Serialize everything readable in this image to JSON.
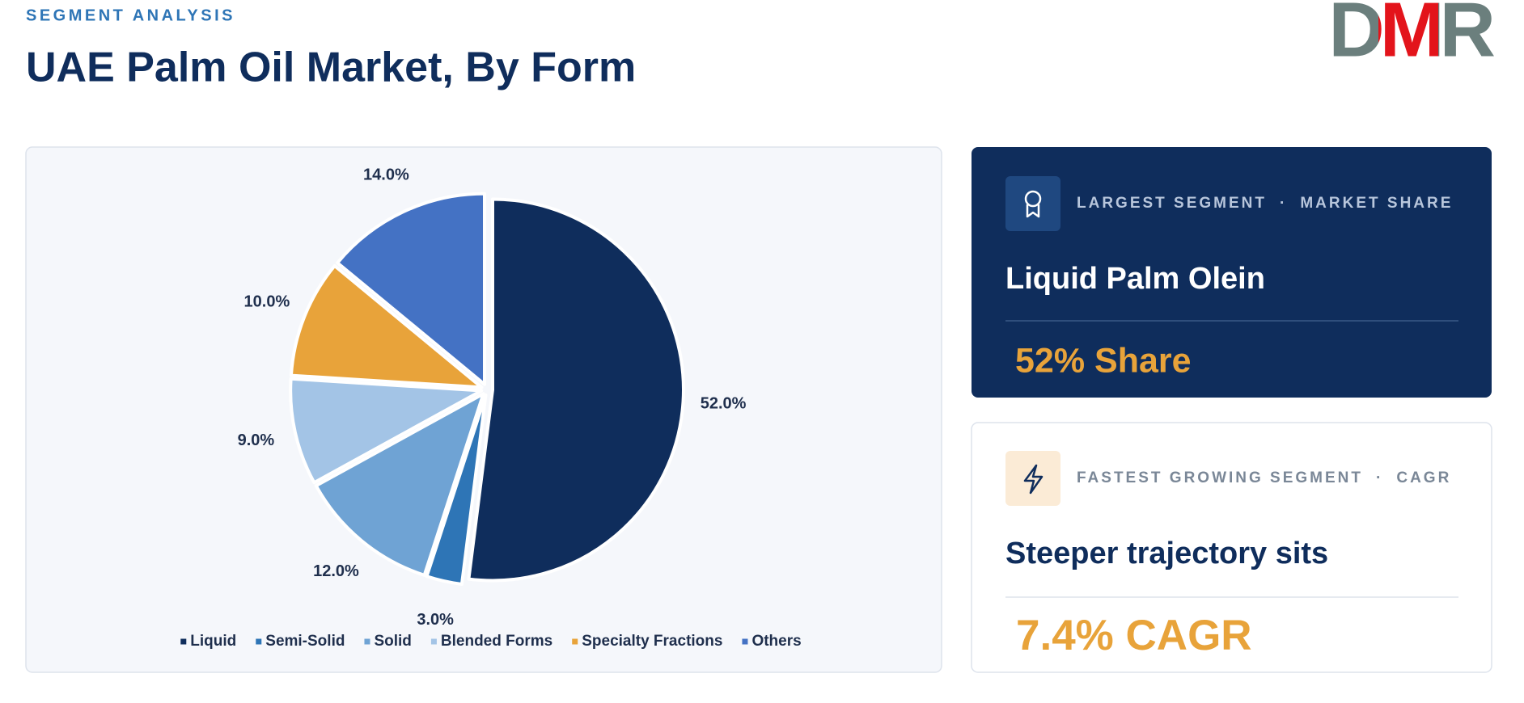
{
  "header": {
    "eyebrow": "SEGMENT ANALYSIS",
    "title": "UAE Palm Oil Market, By Form",
    "logo": "DMR"
  },
  "chart_data": {
    "type": "pie",
    "categories": [
      "Liquid",
      "Semi-Solid",
      "Solid",
      "Blended Forms",
      "Specialty Fractions",
      "Others"
    ],
    "values": [
      52,
      3,
      12,
      9,
      10,
      14
    ],
    "value_labels": [
      "52.0%",
      "3.0%",
      "12.0%",
      "9.0%",
      "10.0%",
      "14.0%"
    ],
    "colors": [
      "#0f2d5c",
      "#2e75b6",
      "#6fa3d4",
      "#a3c4e6",
      "#e8a33a",
      "#4472c4"
    ],
    "legend": "bottom"
  },
  "cards": [
    {
      "label": "LARGEST SEGMENT",
      "separator": "·",
      "metric": "MARKET SHARE",
      "name": "Liquid Palm Olein",
      "value": "52% Share"
    },
    {
      "label": "FASTEST GROWING SEGMENT",
      "separator": "·",
      "metric": "CAGR",
      "name": "Steeper trajectory sits",
      "value": "7.4% CAGR"
    }
  ]
}
